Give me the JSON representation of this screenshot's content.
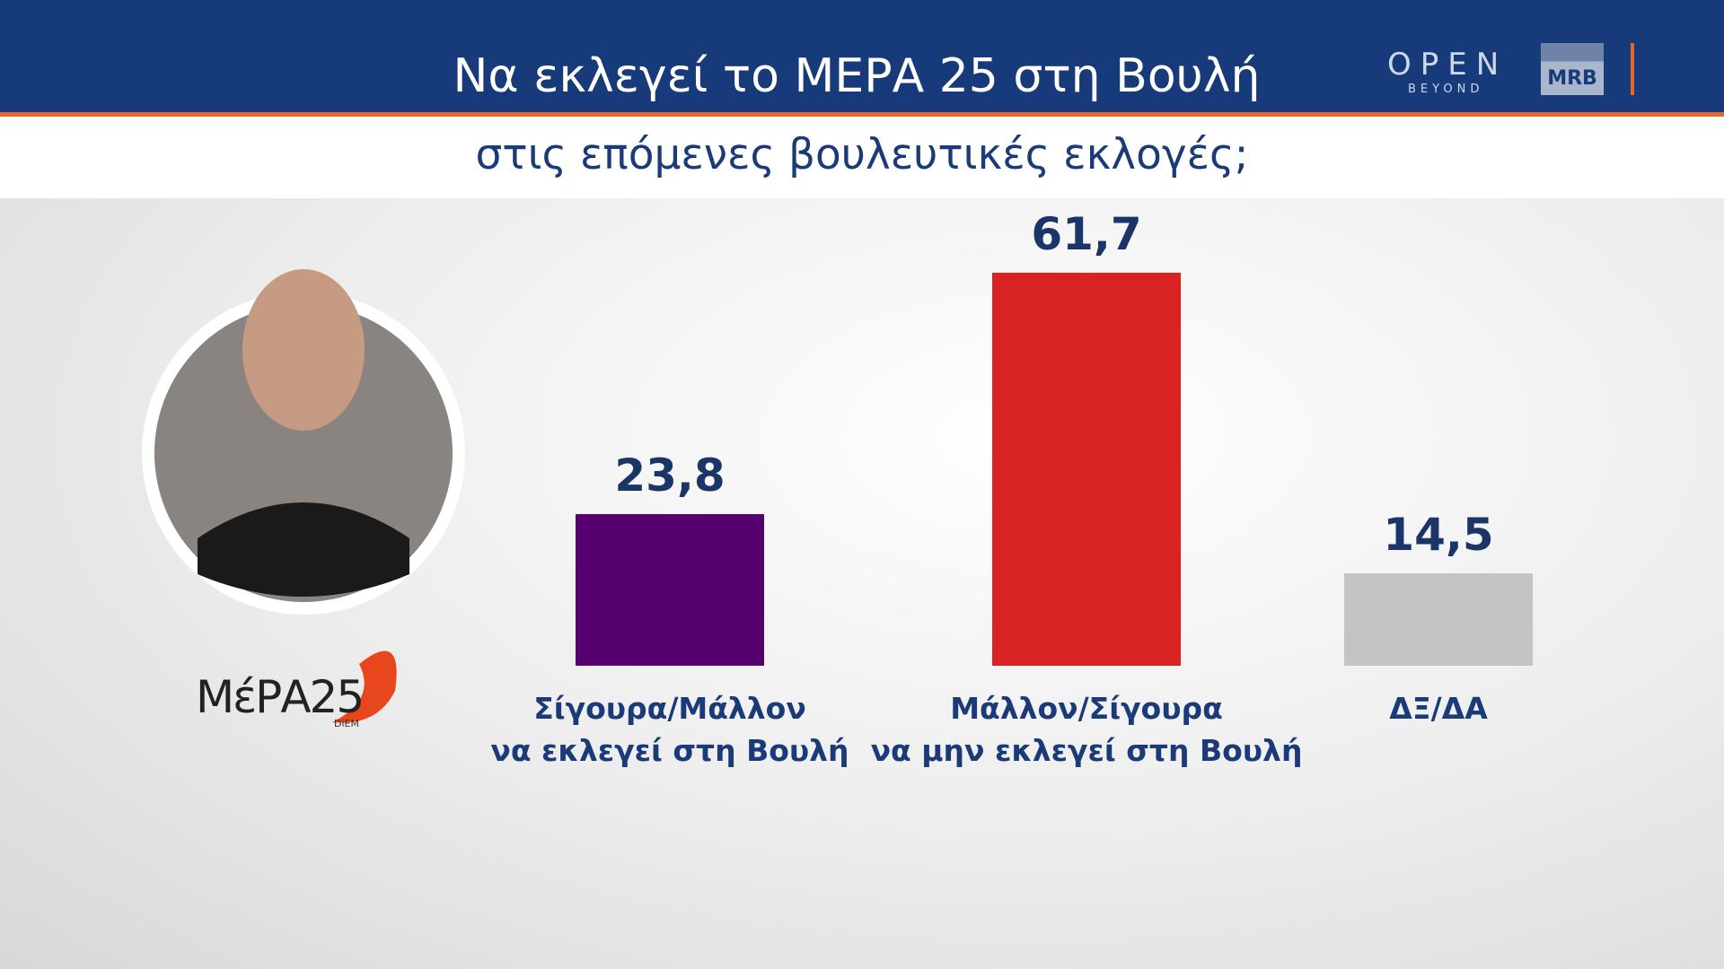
{
  "chart_data": {
    "type": "bar",
    "title": "Να εκλεγεί το ΜΕΡΑ 25 στη Βουλή",
    "subtitle": "στις επόμενες βουλευτικές εκλογές;",
    "categories": [
      "Σίγουρα/Μάλλον\nνα εκλεγεί στη Βουλή",
      "Μάλλον/Σίγουρα\nνα μην εκλεγεί στη Βουλή",
      "ΔΞ/ΔΑ"
    ],
    "values": [
      23.8,
      61.7,
      14.5
    ],
    "value_labels": [
      "23,8",
      "61,7",
      "14,5"
    ],
    "colors": [
      "#57006f",
      "#d92222",
      "#c4c4c4"
    ]
  },
  "logos": {
    "channel": "OPEN",
    "channel_sub": "BEYOND",
    "pollster": "MRB",
    "party": "ΜέΡΑ25",
    "party_sub": "DiEM"
  }
}
